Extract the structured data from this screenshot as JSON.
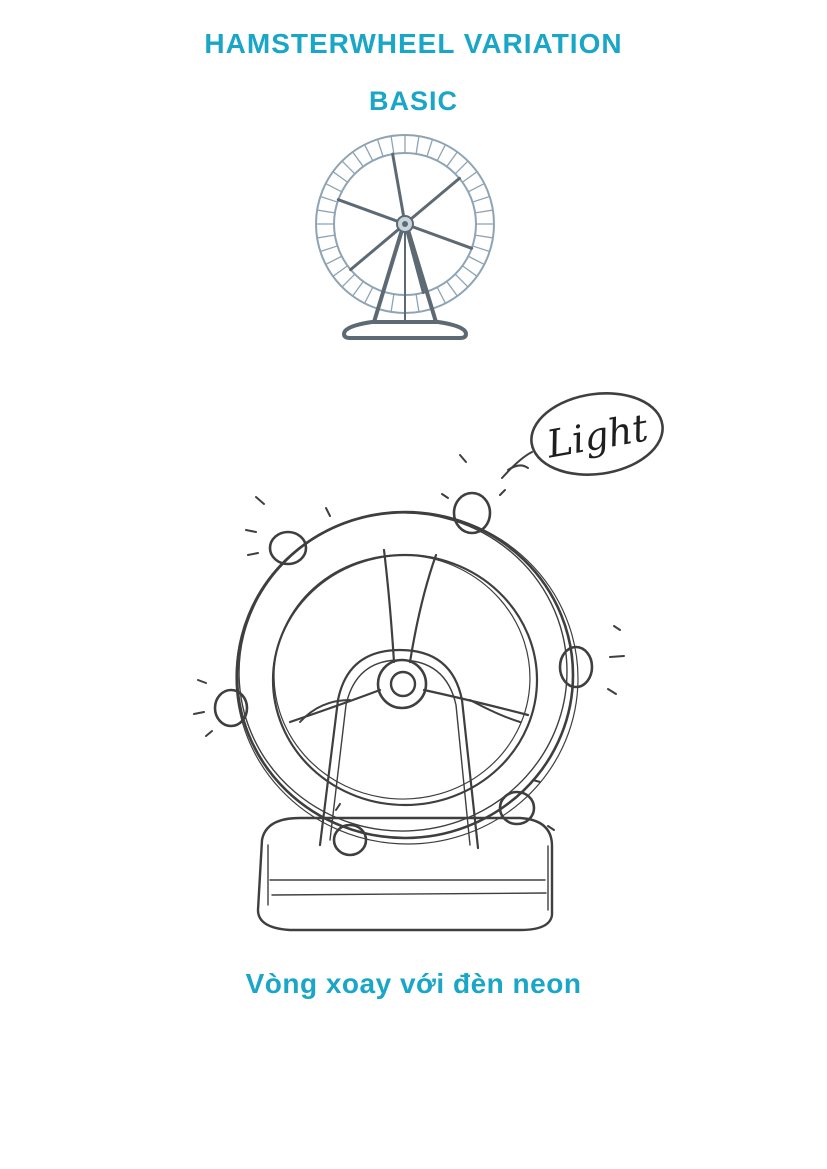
{
  "page": {
    "title": "HAMSTERWHEEL VARIATION",
    "subtitle": "BASIC",
    "caption": "Vòng xoay với đèn neon",
    "accent_color": "#1aa6c6"
  },
  "basic_wheel": {
    "icon": "hamster-wheel-icon",
    "rim_color": "#8ea4b4",
    "frame_color": "#5d6a74"
  },
  "sketch": {
    "icon": "neon-hamster-wheel-sketch",
    "bubble_text": "Light",
    "ink_color": "#1e1e1e"
  }
}
